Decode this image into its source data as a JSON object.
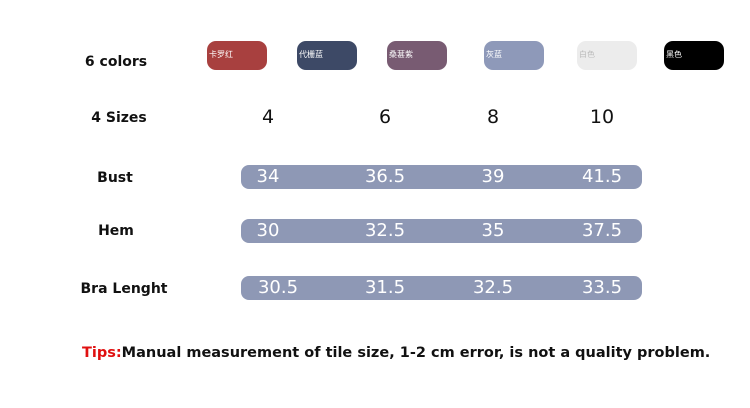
{
  "colors": {
    "label": "6 colors",
    "items": [
      {
        "name": "卡罗红",
        "color": "#a8403f"
      },
      {
        "name": "代栅蓝",
        "color": "#3d4966"
      },
      {
        "name": "桑葚紫",
        "color": "#785b72"
      },
      {
        "name": "灰蓝",
        "color": "#8e99b9"
      },
      {
        "name": "白色",
        "color": "#ececec"
      },
      {
        "name": "黑色",
        "color": "#000000"
      }
    ]
  },
  "sizes": {
    "label": "4 Sizes",
    "values": [
      "4",
      "6",
      "8",
      "10"
    ]
  },
  "rows": [
    {
      "label": "Bust",
      "values": [
        "34",
        "36.5",
        "39",
        "41.5"
      ]
    },
    {
      "label": "Hem",
      "values": [
        "30",
        "32.5",
        "35",
        "37.5"
      ]
    },
    {
      "label": "Bra Lenght",
      "values": [
        "30.5",
        "31.5",
        "32.5",
        "33.5"
      ]
    }
  ],
  "tips": {
    "prefix": "Tips:",
    "text": "Manual measurement of tile size, 1-2 cm error, is not a quality problem."
  }
}
